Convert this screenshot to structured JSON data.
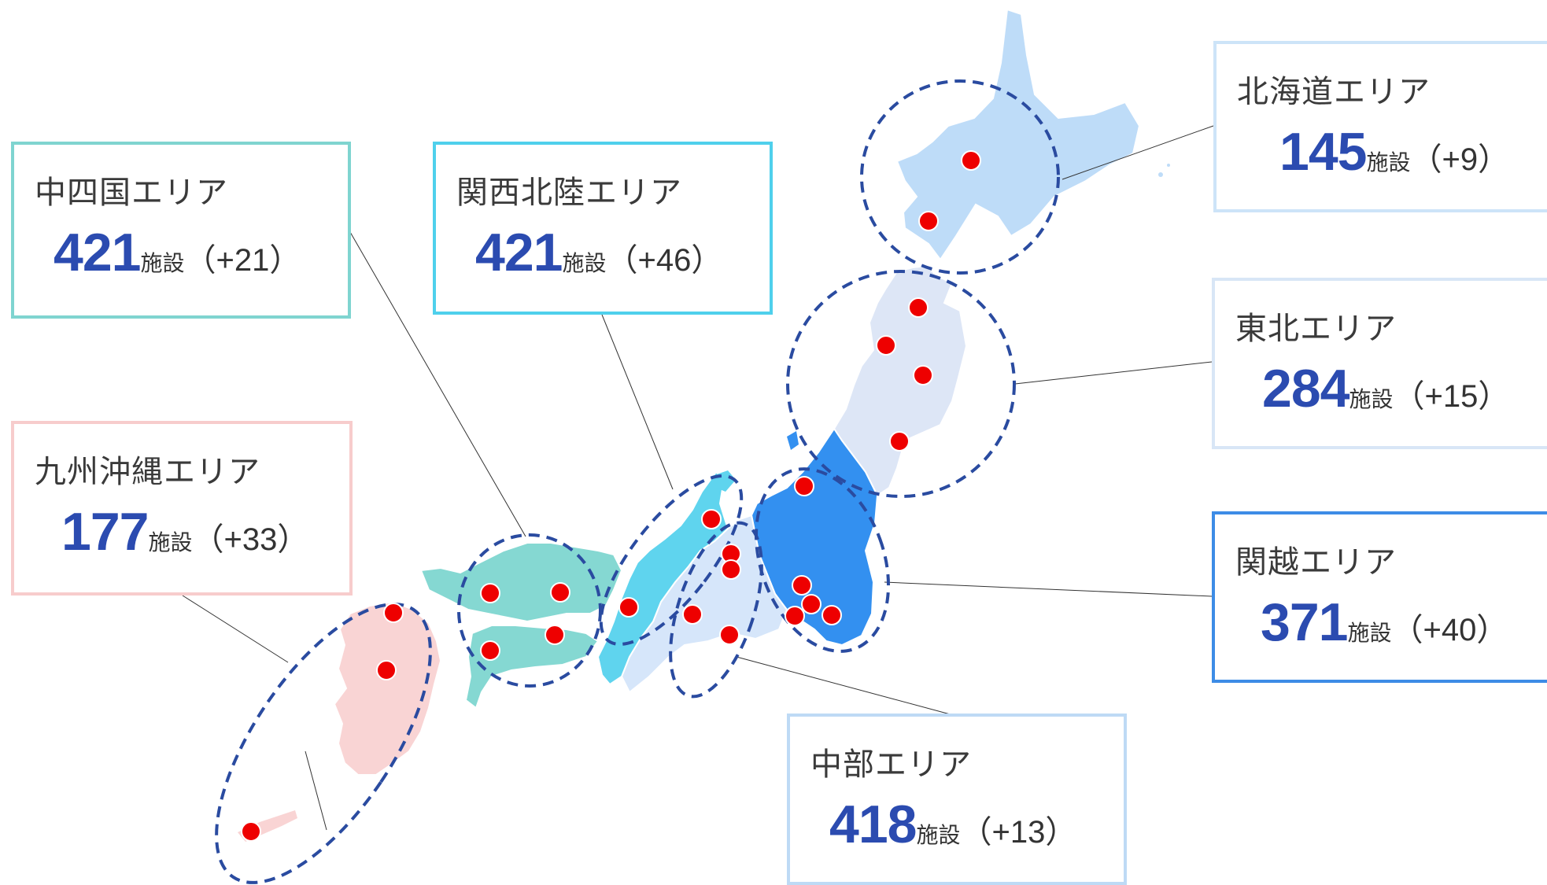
{
  "colors": {
    "accent_number": "#2b4bb0",
    "marker": "#ee0000",
    "circle": "#2a4ba0",
    "hokkaido_fill": "#bedcf8",
    "tohoku_fill": "#dde6f6",
    "kanetsu_fill": "#3390f0",
    "chubu_fill": "#d6e6fa",
    "kansai_fill": "#5fd4ee",
    "chushikoku_fill": "#85d8d2",
    "kyushu_fill": "#f9d4d4"
  },
  "areas": {
    "chushikoku": {
      "name": "中四国エリア",
      "count": "421",
      "unit": "施設",
      "diff": "（+21）"
    },
    "kansai": {
      "name": "関西北陸エリア",
      "count": "421",
      "unit": "施設",
      "diff": "（+46）"
    },
    "kyushu": {
      "name": "九州沖縄エリア",
      "count": "177",
      "unit": "施設",
      "diff": "（+33）"
    },
    "hokkaido": {
      "name": "北海道エリア",
      "count": "145",
      "unit": "施設",
      "diff": "（+9）"
    },
    "tohoku": {
      "name": "東北エリア",
      "count": "284",
      "unit": "施設",
      "diff": "（+15）"
    },
    "kanetsu": {
      "name": "関越エリア",
      "count": "371",
      "unit": "施設",
      "diff": "（+40）"
    },
    "chubu": {
      "name": "中部エリア",
      "count": "418",
      "unit": "施設",
      "diff": "（+13）"
    }
  },
  "marker_icon": "red-dot-icon"
}
